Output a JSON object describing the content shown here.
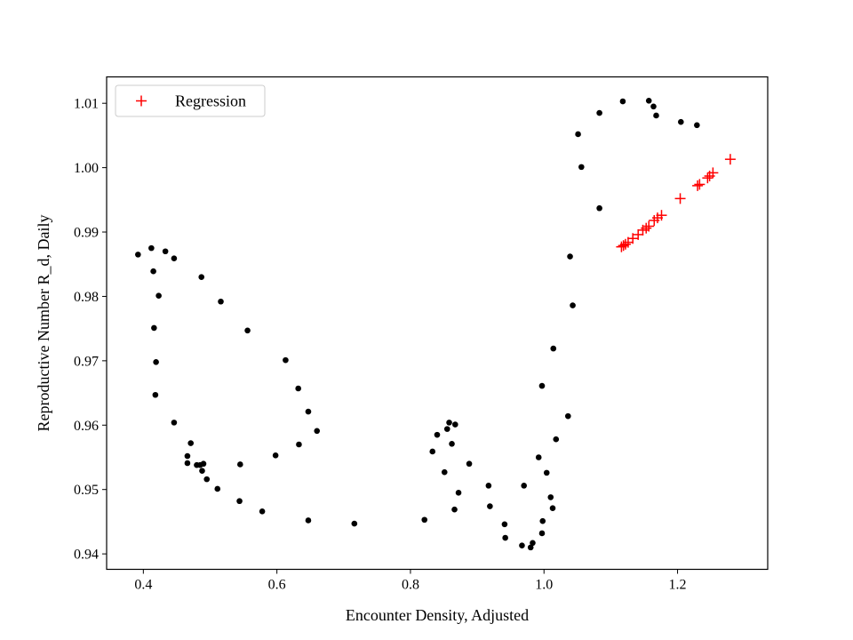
{
  "chart_data": {
    "type": "scatter",
    "title": "",
    "xlabel": "Encounter Density, Adjusted",
    "ylabel": "Reproductive Number R_d, Daily",
    "xlim": [
      0.345,
      1.335
    ],
    "ylim": [
      0.9376,
      1.0141
    ],
    "xticks": [
      0.4,
      0.6,
      0.8,
      1.0,
      1.2
    ],
    "xtick_labels": [
      "0.4",
      "0.6",
      "0.8",
      "1.0",
      "1.2"
    ],
    "yticks": [
      0.94,
      0.95,
      0.96,
      0.97,
      0.98,
      0.99,
      1.0,
      1.01
    ],
    "ytick_labels": [
      "0.94",
      "0.95",
      "0.96",
      "0.97",
      "0.98",
      "0.99",
      "1.00",
      "1.01"
    ],
    "grid": false,
    "legend_position": "top-left",
    "colors": {
      "observed": "#000000",
      "regression": "#ff0000"
    },
    "series": [
      {
        "marker": "dot",
        "points": [
          [
            0.392,
            0.9865
          ],
          [
            0.412,
            0.9875
          ],
          [
            0.415,
            0.9839
          ],
          [
            0.423,
            0.9801
          ],
          [
            0.433,
            0.987
          ],
          [
            0.446,
            0.9859
          ],
          [
            0.416,
            0.9751
          ],
          [
            0.419,
            0.9698
          ],
          [
            0.418,
            0.9647
          ],
          [
            0.446,
            0.9604
          ],
          [
            0.471,
            0.9572
          ],
          [
            0.466,
            0.9552
          ],
          [
            0.466,
            0.9541
          ],
          [
            0.48,
            0.9538
          ],
          [
            0.485,
            0.9538
          ],
          [
            0.49,
            0.954
          ],
          [
            0.488,
            0.9529
          ],
          [
            0.495,
            0.9516
          ],
          [
            0.511,
            0.9501
          ],
          [
            0.544,
            0.9482
          ],
          [
            0.578,
            0.9466
          ],
          [
            0.647,
            0.9452
          ],
          [
            0.716,
            0.9447
          ],
          [
            0.545,
            0.9539
          ],
          [
            0.598,
            0.9553
          ],
          [
            0.633,
            0.957
          ],
          [
            0.66,
            0.9591
          ],
          [
            0.647,
            0.9621
          ],
          [
            0.632,
            0.9657
          ],
          [
            0.613,
            0.9701
          ],
          [
            0.556,
            0.9747
          ],
          [
            0.516,
            0.9792
          ],
          [
            0.487,
            0.983
          ],
          [
            0.821,
            0.9453
          ],
          [
            0.833,
            0.9559
          ],
          [
            0.84,
            0.9585
          ],
          [
            0.851,
            0.9527
          ],
          [
            0.855,
            0.9594
          ],
          [
            0.858,
            0.9604
          ],
          [
            0.862,
            0.9571
          ],
          [
            0.867,
            0.9601
          ],
          [
            0.866,
            0.9469
          ],
          [
            0.872,
            0.9495
          ],
          [
            0.888,
            0.954
          ],
          [
            0.917,
            0.9506
          ],
          [
            0.919,
            0.9474
          ],
          [
            0.941,
            0.9446
          ],
          [
            0.942,
            0.9425
          ],
          [
            0.967,
            0.9413
          ],
          [
            0.97,
            0.9506
          ],
          [
            0.98,
            0.941
          ],
          [
            0.983,
            0.9417
          ],
          [
            0.992,
            0.955
          ],
          [
            0.997,
            0.9432
          ],
          [
            0.998,
            0.9451
          ],
          [
            0.997,
            0.9661
          ],
          [
            1.004,
            0.9526
          ],
          [
            1.01,
            0.9488
          ],
          [
            1.013,
            0.9471
          ],
          [
            1.014,
            0.9719
          ],
          [
            1.018,
            0.9578
          ],
          [
            1.036,
            0.9614
          ],
          [
            1.043,
            0.9786
          ],
          [
            1.039,
            0.9862
          ],
          [
            1.056,
            1.0001
          ],
          [
            1.051,
            1.0052
          ],
          [
            1.083,
            0.9937
          ],
          [
            1.083,
            1.0085
          ],
          [
            1.118,
            1.0103
          ],
          [
            1.157,
            1.0104
          ],
          [
            1.164,
            1.0095
          ],
          [
            1.168,
            1.0081
          ],
          [
            1.205,
            1.0071
          ],
          [
            1.229,
            1.0066
          ]
        ]
      },
      {
        "name": "Regression",
        "marker": "plus",
        "points": [
          [
            1.116,
            0.9877
          ],
          [
            1.119,
            0.9879
          ],
          [
            1.122,
            0.9881
          ],
          [
            1.126,
            0.9884
          ],
          [
            1.133,
            0.989
          ],
          [
            1.141,
            0.9896
          ],
          [
            1.148,
            0.9903
          ],
          [
            1.153,
            0.9906
          ],
          [
            1.157,
            0.9909
          ],
          [
            1.165,
            0.9918
          ],
          [
            1.17,
            0.9922
          ],
          [
            1.176,
            0.9926
          ],
          [
            1.204,
            0.9952
          ],
          [
            1.23,
            0.9972
          ],
          [
            1.233,
            0.9974
          ],
          [
            1.245,
            0.9984
          ],
          [
            1.248,
            0.9987
          ],
          [
            1.253,
            0.9992
          ],
          [
            1.279,
            1.0013
          ]
        ]
      }
    ]
  }
}
